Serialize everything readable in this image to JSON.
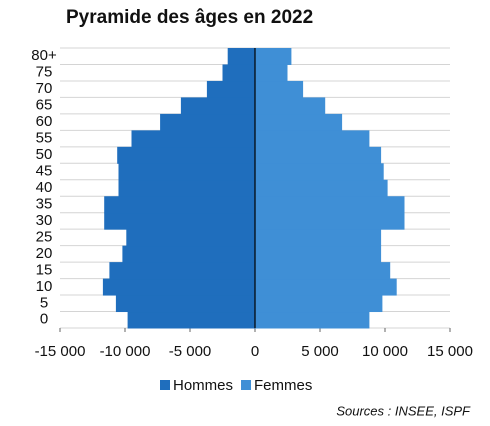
{
  "chart_data": {
    "type": "pyramid",
    "title": "Pyramide des âges en 2022",
    "categories": [
      "0",
      "5",
      "10",
      "15",
      "20",
      "25",
      "30",
      "35",
      "40",
      "45",
      "50",
      "55",
      "60",
      "65",
      "70",
      "75",
      "80+"
    ],
    "series": [
      {
        "name": "Hommes",
        "color": "#1f6ebd",
        "values": [
          -9800,
          -10700,
          -11700,
          -11200,
          -10200,
          -9900,
          -11600,
          -11600,
          -10500,
          -10500,
          -10600,
          -9500,
          -7300,
          -5700,
          -3700,
          -2500,
          -2100
        ]
      },
      {
        "name": "Femmes",
        "color": "#3f8fd6",
        "values": [
          8800,
          9800,
          10900,
          10400,
          9700,
          9700,
          11500,
          11500,
          10200,
          9900,
          9700,
          8800,
          6700,
          5400,
          3700,
          2500,
          2800
        ]
      }
    ],
    "xlim": [
      -15000,
      15000
    ],
    "xticks": [
      {
        "value": -15000,
        "label": "-15 000"
      },
      {
        "value": -10000,
        "label": "-10 000"
      },
      {
        "value": -5000,
        "label": "-5 000"
      },
      0,
      {
        "value": 5000,
        "label": "5 000"
      },
      {
        "value": 10000,
        "label": "10 000"
      },
      {
        "value": 15000,
        "label": "15 000"
      }
    ],
    "source": "Sources : INSEE, ISPF",
    "grid": true
  }
}
